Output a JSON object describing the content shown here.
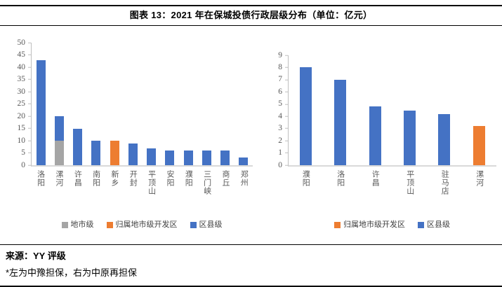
{
  "title": "图表 13：2021 年在保城投债行政层级分布（单位：亿元）",
  "source": "来源：YY 评级",
  "footnote": "*左为中豫担保，右为中原再担保",
  "colors": {
    "blue": "#4472C4",
    "orange": "#ED7D31",
    "gray": "#A5A5A5"
  },
  "chart_data": [
    {
      "type": "bar",
      "stacked": true,
      "entity": "中豫担保",
      "categories": [
        "洛阳",
        "漯河",
        "许昌",
        "南阳",
        "新乡",
        "开封",
        "平顶山",
        "安阳",
        "濮阳",
        "三门峡",
        "商丘",
        "郑州"
      ],
      "series": [
        {
          "name": "地市级",
          "color": "gray",
          "values": [
            0,
            10,
            0,
            0,
            0,
            0,
            0,
            0,
            0,
            0,
            0,
            0
          ]
        },
        {
          "name": "归属地市级开发区",
          "color": "orange",
          "values": [
            0,
            0,
            0,
            0,
            10,
            0,
            0,
            0,
            0,
            0,
            0,
            0
          ]
        },
        {
          "name": "区县级",
          "color": "blue",
          "values": [
            43,
            10,
            15,
            10,
            0,
            9,
            7,
            6,
            6,
            6,
            6,
            3.2
          ]
        }
      ],
      "ylim": [
        0,
        50
      ],
      "ytick_step": 5,
      "grid": false,
      "legend_position": "bottom"
    },
    {
      "type": "bar",
      "stacked": true,
      "entity": "中原再担保",
      "categories": [
        "濮阳",
        "洛阳",
        "许昌",
        "平顶山",
        "驻马店",
        "漯河"
      ],
      "series": [
        {
          "name": "归属地市级开发区",
          "color": "orange",
          "values": [
            0,
            0,
            0,
            0,
            0,
            3.2
          ]
        },
        {
          "name": "区县级",
          "color": "blue",
          "values": [
            8,
            7,
            4.8,
            4.5,
            4.2,
            0
          ]
        }
      ],
      "ylim": [
        0,
        9
      ],
      "ytick_step": 1,
      "grid": false,
      "legend_position": "bottom"
    }
  ]
}
